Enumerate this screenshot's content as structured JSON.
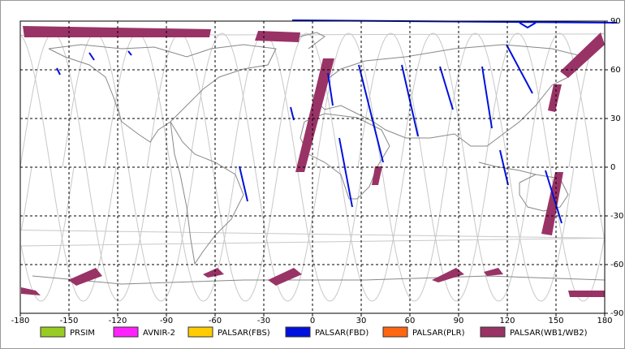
{
  "map": {
    "xticks": [
      -180,
      -150,
      -120,
      -90,
      -60,
      -30,
      0,
      30,
      60,
      90,
      120,
      150,
      180
    ],
    "yticks": [
      90,
      60,
      30,
      0,
      -30,
      -60,
      -90
    ],
    "legend": [
      {
        "name": "PRSIM",
        "color": "#99cc22"
      },
      {
        "name": "AVNIR-2",
        "color": "#ff22ff"
      },
      {
        "name": "PALSAR(FBS)",
        "color": "#ffcc00"
      },
      {
        "name": "PALSAR(FBD)",
        "color": "#0011dd"
      },
      {
        "name": "PALSAR(PLR)",
        "color": "#ff6611"
      },
      {
        "name": "PALSAR(WB1/WB2)",
        "color": "#993366"
      }
    ]
  }
}
